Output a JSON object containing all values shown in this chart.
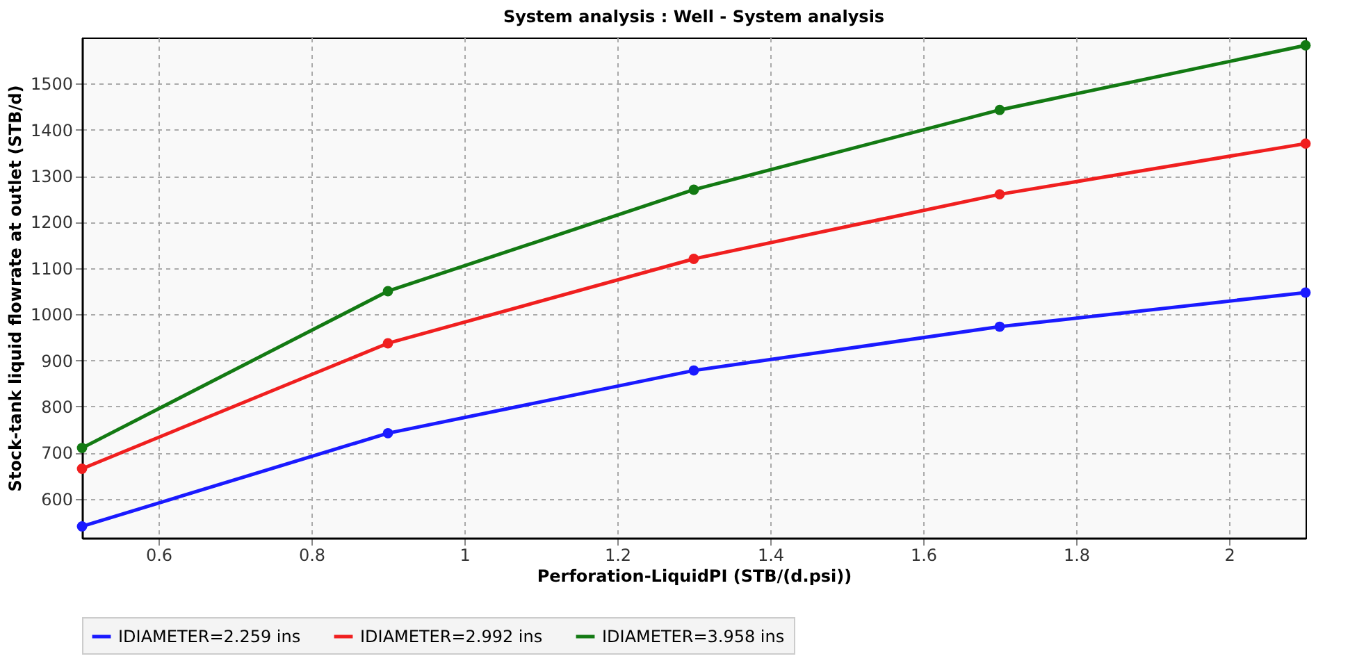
{
  "chart_data": {
    "type": "line",
    "title": "System analysis : Well - System analysis",
    "xlabel": "Perforation-LiquidPI (STB/(d.psi))",
    "ylabel": "Stock-tank liquid flowrate at outlet (STB/d)",
    "x": [
      0.5,
      0.9,
      1.3,
      1.7,
      2.1
    ],
    "series": [
      {
        "name": "IDIAMETER=2.259 ins",
        "color": "#1a1aff",
        "values": [
          540,
          742,
          878,
          973,
          1047
        ]
      },
      {
        "name": "IDIAMETER=2.992 ins",
        "color": "#f01f1f",
        "values": [
          665,
          937,
          1120,
          1260,
          1370
        ]
      },
      {
        "name": "IDIAMETER=3.958 ins",
        "color": "#137a13",
        "values": [
          710,
          1050,
          1270,
          1443,
          1583
        ]
      }
    ],
    "xlim": [
      0.5,
      2.1
    ],
    "xticks": [
      0.6,
      0.8,
      1,
      1.2,
      1.4,
      1.6,
      1.8,
      2
    ],
    "ylim": [
      515,
      1600
    ],
    "yticks": [
      600,
      700,
      800,
      900,
      1000,
      1100,
      1200,
      1300,
      1400,
      1500
    ],
    "grid": true,
    "legend": "bottom",
    "marker": "circle",
    "line_style": "solid"
  }
}
